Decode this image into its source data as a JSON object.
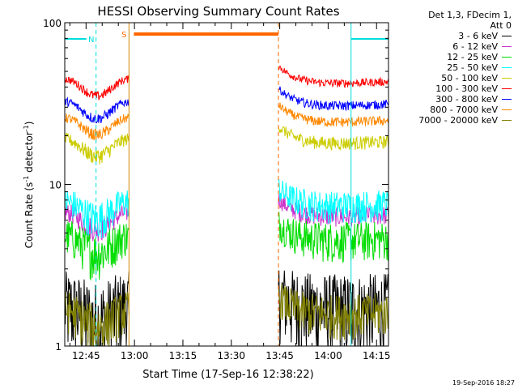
{
  "chart_data": {
    "type": "line",
    "title": "HESSI Observing Summary Count Rates",
    "xlabel": "Start Time (17-Sep-16 12:38:22)",
    "ylabel_main": "Count Rate (s",
    "ylabel_sup1": "-1",
    "ylabel_mid": " detector",
    "ylabel_sup2": "-1",
    "ylabel_end": ")",
    "yscale": "log",
    "ylim": [
      1,
      100
    ],
    "xlim_min": [
      758.4,
      858.7
    ],
    "x_ticks": [
      {
        "min": 765,
        "label": "12:45"
      },
      {
        "min": 780,
        "label": "13:00"
      },
      {
        "min": 795,
        "label": "13:15"
      },
      {
        "min": 810,
        "label": "13:30"
      },
      {
        "min": 825,
        "label": "13:45"
      },
      {
        "min": 840,
        "label": "14:00"
      },
      {
        "min": 855,
        "label": "14:15"
      }
    ],
    "y_ticks": [
      {
        "value": 1,
        "label": "1"
      },
      {
        "value": 10,
        "label": "10"
      },
      {
        "value": 100,
        "label": "100"
      }
    ],
    "legend_header": [
      "Det 1,3, FDecim 1,",
      "Att 0"
    ],
    "series": [
      {
        "name": "3 - 6 keV",
        "color": "#000000",
        "base": 1.6,
        "lo": 1.0,
        "hi": 3.2
      },
      {
        "name": "6 - 12 keV",
        "color": "#cc33cc",
        "base": 6.0,
        "lo": 5.2,
        "hi": 7.0
      },
      {
        "name": "12 - 25 keV",
        "color": "#00dd00",
        "base": 4.3,
        "lo": 2.6,
        "hi": 5.2
      },
      {
        "name": "25 - 50 keV",
        "color": "#00ffff",
        "base": 7.0,
        "lo": 5.6,
        "hi": 9.0
      },
      {
        "name": "50 - 100 keV",
        "color": "#cccc00",
        "base": 17.0,
        "lo": 15.5,
        "hi": 19.0
      },
      {
        "name": "100 - 300 keV",
        "color": "#ff0000",
        "base": 40.0,
        "lo": 38.0,
        "hi": 43.0
      },
      {
        "name": "300 - 800 keV",
        "color": "#0000ff",
        "base": 29.0,
        "lo": 27.0,
        "hi": 31.0
      },
      {
        "name": "800 - 7000 keV",
        "color": "#ff8800",
        "base": 23.0,
        "lo": 21.5,
        "hi": 25.0
      },
      {
        "name": "7000 - 20000 keV",
        "color": "#808000",
        "base": 1.5,
        "lo": 1.0,
        "hi": 2.0
      }
    ],
    "data_segments": [
      {
        "start": 758.4,
        "end": 778.3
      },
      {
        "start": 824.6,
        "end": 858.7
      }
    ],
    "gaps": [
      {
        "start": 778.3,
        "end": 824.6,
        "label": "S",
        "color": "#ff6600",
        "bar_from": 778.3,
        "bar_to": 824.6
      }
    ],
    "night_bars": [
      {
        "from": 758.4,
        "to": 768.1,
        "label": "N",
        "color": "#00dddd"
      },
      {
        "from": 847.1,
        "to": 858.7,
        "label": "",
        "color": "#00dddd"
      }
    ],
    "vlines": [
      {
        "min": 758.4,
        "color": "#00dddd",
        "dashed": false
      },
      {
        "min": 768.1,
        "color": "#00dddd",
        "dashed": true
      },
      {
        "min": 778.3,
        "color": "#cc8800",
        "dashed": false
      },
      {
        "min": 824.6,
        "color": "#ff6600",
        "dashed": true
      },
      {
        "min": 847.1,
        "color": "#00dddd",
        "dashed": false
      },
      {
        "min": 858.7,
        "color": "#00dddd",
        "dashed": true
      }
    ]
  },
  "footer": {
    "timestamp": "19-Sep-2016 18:27"
  }
}
